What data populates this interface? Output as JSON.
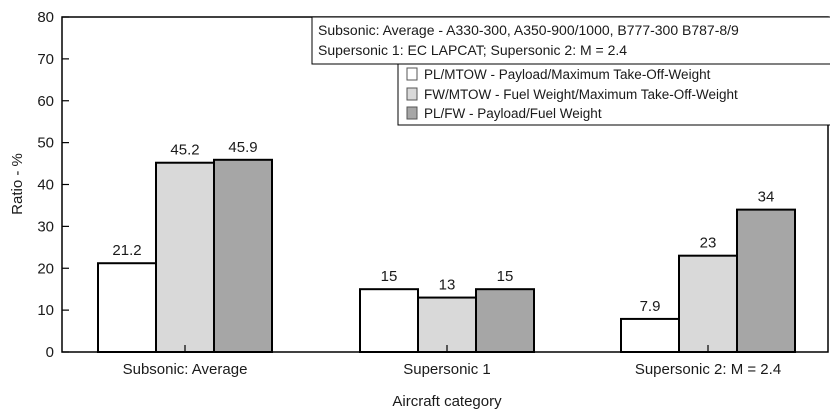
{
  "chart_data": {
    "type": "bar",
    "title": "",
    "xlabel": "Aircraft category",
    "ylabel": "Ratio - %",
    "ylim": [
      0,
      80
    ],
    "yticks": [
      0,
      10,
      20,
      30,
      40,
      50,
      60,
      70,
      80
    ],
    "grid": false,
    "legend_position": "top-right",
    "categories": [
      "Subsonic: Average",
      "Supersonic 1",
      "Supersonic 2: M = 2.4"
    ],
    "series": [
      {
        "name": "PL/MTOW - Payload/Maximum Take-Off-Weight",
        "color": "#ffffff",
        "values": [
          21.2,
          15,
          7.9
        ],
        "labels": [
          "21.2",
          "15",
          "7.9"
        ]
      },
      {
        "name": "FW/MTOW -  Fuel Weight/Maximum Take-Off-Weight",
        "color": "#d9d9d9",
        "values": [
          45.2,
          13,
          23
        ],
        "labels": [
          "45.2",
          "13",
          "23"
        ]
      },
      {
        "name": "PL/FW - Payload/Fuel Weight",
        "color": "#a6a6a6",
        "values": [
          45.9,
          15,
          34
        ],
        "labels": [
          "45.9",
          "15",
          "34"
        ]
      }
    ],
    "annotation": [
      "Subsonic: Average - A330-300, A350-900/1000, B777-300 B787-8/9",
      "Supersonic 1: EC LAPCAT; Supersonic 2: M = 2.4"
    ]
  }
}
